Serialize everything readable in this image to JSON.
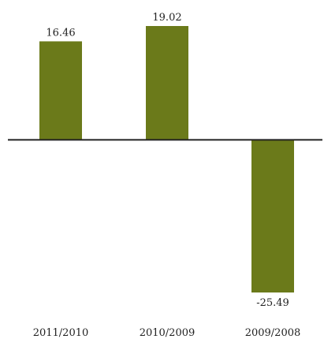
{
  "chart_data": {
    "type": "bar",
    "title": "",
    "xlabel": "",
    "ylabel": "",
    "categories": [
      "2011/2010",
      "2010/2009",
      "2009/2008"
    ],
    "values": [
      16.46,
      19.02,
      -25.49
    ],
    "value_labels": [
      "16.46",
      "19.02",
      "-25.49"
    ],
    "ylim": [
      -25.49,
      19.02
    ],
    "grid": false,
    "legend": "none",
    "bar_color": "#6b7a1a",
    "axis_color": "#222222"
  }
}
